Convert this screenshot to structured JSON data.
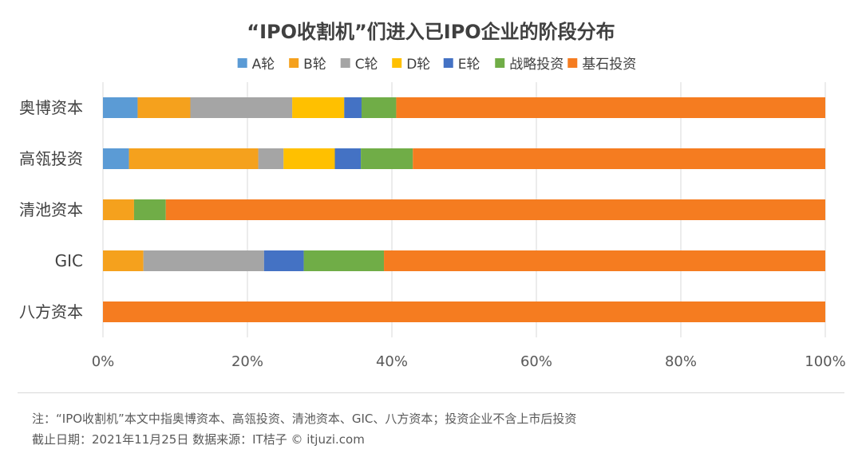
{
  "chart_data": {
    "type": "bar",
    "orientation": "horizontal",
    "stacked": "percent",
    "title": "“IPO收割机”们进入已IPO企业的阶段分布",
    "categories": [
      "奥博资本",
      "高瓴投资",
      "清池资本",
      "GIC",
      "八方资本"
    ],
    "series": [
      {
        "name": "A轮",
        "color": "#5b9bd5",
        "values": [
          4.8,
          3.6,
          0,
          0,
          0
        ]
      },
      {
        "name": "B轮",
        "color": "#f5a11d",
        "values": [
          7.3,
          17.9,
          4.3,
          5.6,
          0
        ]
      },
      {
        "name": "C轮",
        "color": "#a5a5a5",
        "values": [
          14.1,
          3.5,
          0,
          16.7,
          0
        ]
      },
      {
        "name": "D轮",
        "color": "#ffc000",
        "values": [
          7.2,
          7.1,
          0,
          0,
          0
        ]
      },
      {
        "name": "E轮",
        "color": "#4472c4",
        "values": [
          2.4,
          3.6,
          0,
          5.5,
          0
        ]
      },
      {
        "name": "战略投资",
        "color": "#70ad47",
        "values": [
          4.8,
          7.2,
          4.4,
          11.1,
          0
        ]
      },
      {
        "name": "基石投资",
        "color": "#f57c20",
        "values": [
          59.4,
          57.1,
          91.3,
          61.1,
          100
        ]
      }
    ],
    "xlim": [
      0,
      100
    ],
    "xticks": [
      "0%",
      "20%",
      "40%",
      "60%",
      "80%",
      "100%"
    ],
    "legend_position": "top",
    "grid": true
  },
  "notes": {
    "line1": "注：“IPO收割机”本文中指奥博资本、高瓴投资、清池资本、GIC、八方资本；投资企业不含上市后投资",
    "line2": "截止日期：2021年11月25日    数据来源：IT桔子 © itjuzi.com"
  }
}
